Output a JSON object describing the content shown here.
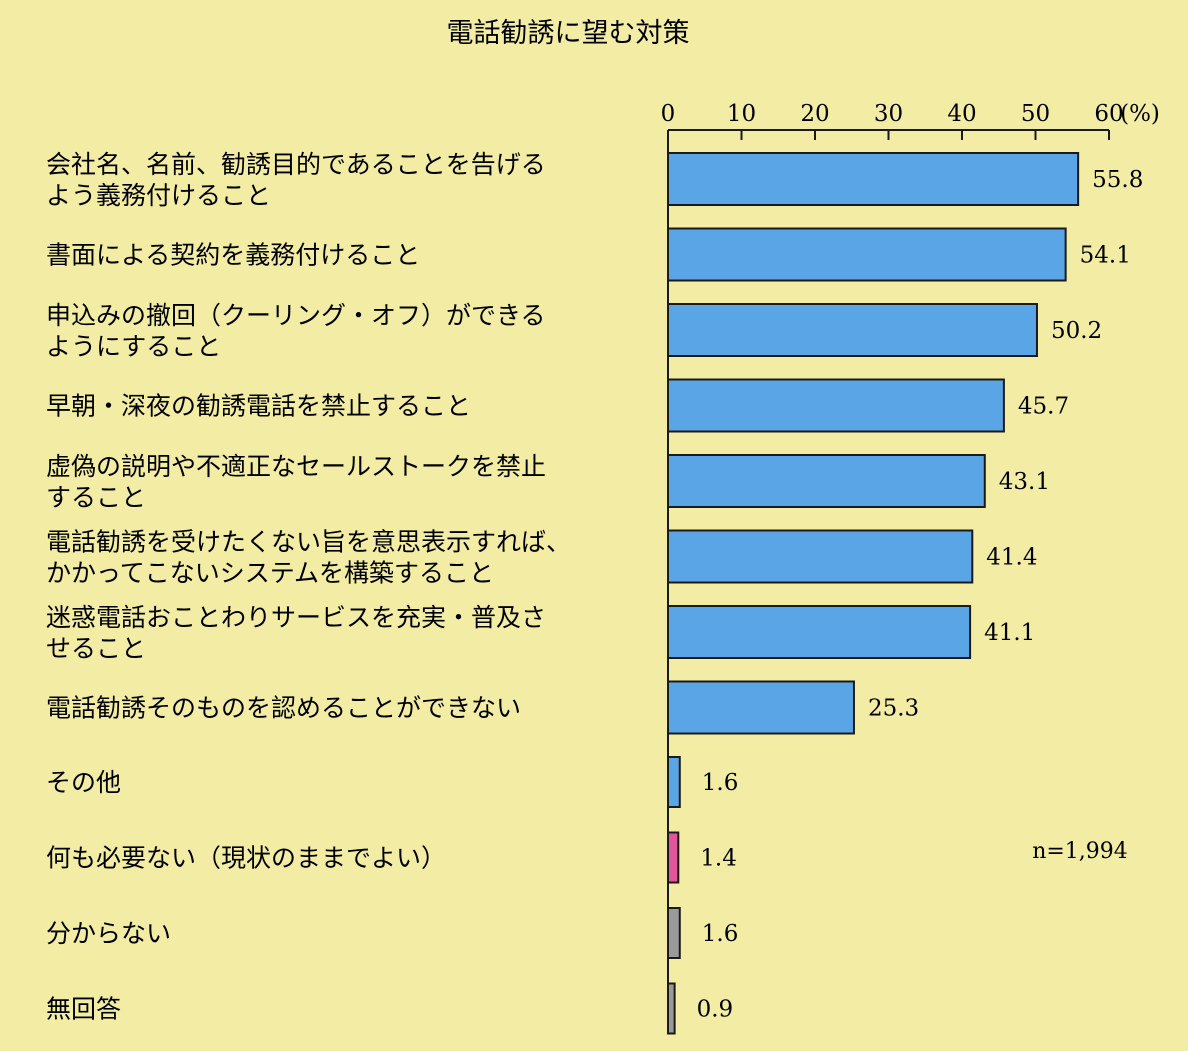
{
  "chart_data": {
    "type": "bar",
    "orientation": "horizontal",
    "title": "電話勧誘に望む対策",
    "xlim": [
      0,
      60
    ],
    "ticks": [
      "0",
      "10",
      "20",
      "30",
      "40",
      "50",
      "60"
    ],
    "unit": "(%)",
    "note": "n=1,994",
    "categories": [
      [
        "会社名、名前、勧誘目的であることを告げる",
        "よう義務付けること"
      ],
      [
        "書面による契約を義務付けること"
      ],
      [
        "申込みの撤回（クーリング・オフ）ができる",
        "ようにすること"
      ],
      [
        "早朝・深夜の勧誘電話を禁止すること"
      ],
      [
        "虚偽の説明や不適正なセールストークを禁止",
        "すること"
      ],
      [
        "電話勧誘を受けたくない旨を意思表示すれば、",
        "かかってこないシステムを構築すること"
      ],
      [
        "迷惑電話おことわりサービスを充実・普及さ",
        "せること"
      ],
      [
        "電話勧誘そのものを認めることができない"
      ],
      [
        "その他"
      ],
      [
        "何も必要ない（現状のままでよい）"
      ],
      [
        "分からない"
      ],
      [
        "無回答"
      ]
    ],
    "values": [
      55.8,
      54.1,
      50.2,
      45.7,
      43.1,
      41.4,
      41.1,
      25.3,
      1.6,
      1.4,
      1.6,
      0.9
    ],
    "value_labels": [
      "55.8",
      "54.1",
      "50.2",
      "45.7",
      "43.1",
      "41.4",
      "41.1",
      "25.3",
      "1.6",
      "1.4",
      "1.6",
      "0.9"
    ],
    "bar_colors": [
      "#5aa5e6",
      "#5aa5e6",
      "#5aa5e6",
      "#5aa5e6",
      "#5aa5e6",
      "#5aa5e6",
      "#5aa5e6",
      "#5aa5e6",
      "#5aa5e6",
      "#e2559a",
      "#9a9a9a",
      "#9a9a9a"
    ],
    "grid": false,
    "legend": "none"
  }
}
